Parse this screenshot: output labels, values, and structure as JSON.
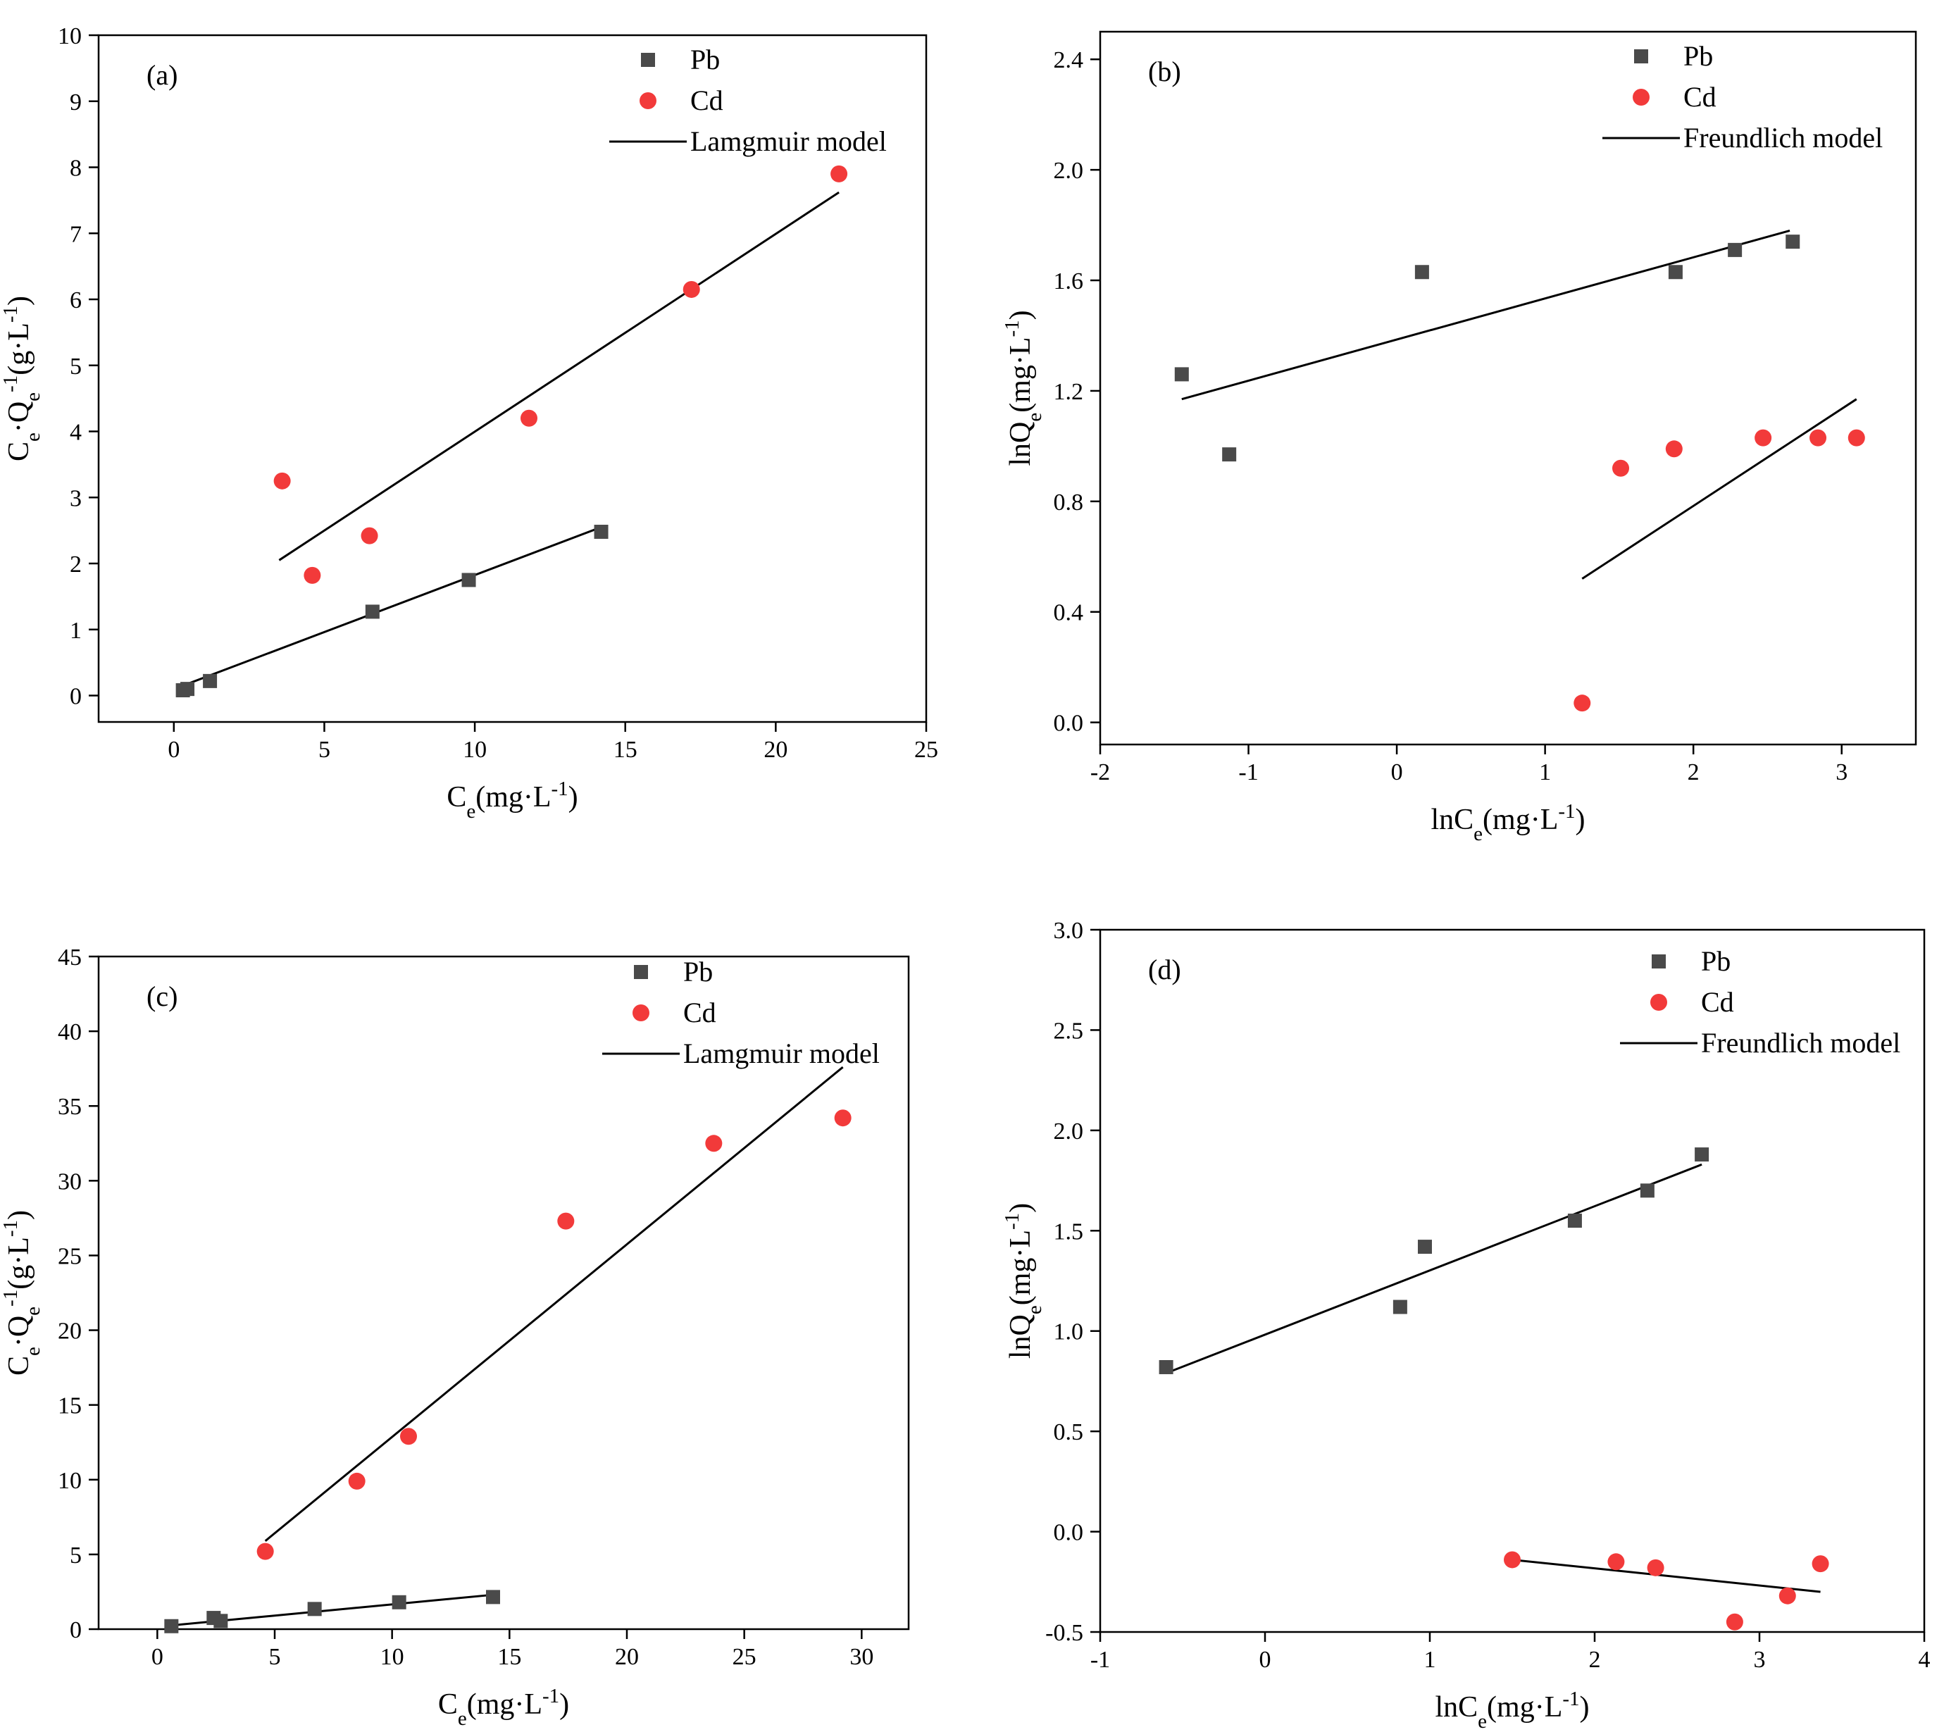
{
  "figure": {
    "colors": {
      "pb": "#4a4a4a",
      "cd": "#f23a3a",
      "line": "#000000",
      "frame": "#000000"
    }
  },
  "chart_data": [
    {
      "panel": "(a)",
      "type": "scatter",
      "xlim": [
        -2.5,
        25
      ],
      "ylim": [
        -0.4,
        10
      ],
      "xticks": [
        0,
        5,
        10,
        15,
        20,
        25
      ],
      "yticks": [
        0,
        1,
        2,
        3,
        4,
        5,
        6,
        7,
        8,
        9,
        10
      ],
      "xlabel": {
        "base": "C",
        "sub": "e",
        "rest": "(mg·L",
        "sup": "-1",
        "tail": ")"
      },
      "ylabel": {
        "parts": [
          [
            "C",
            ""
          ],
          [
            "e",
            "sub"
          ],
          [
            "·Q",
            ""
          ],
          [
            "e",
            "sub"
          ],
          [
            "-1",
            "sup"
          ],
          [
            "(g·L",
            ""
          ],
          [
            "-1",
            "sup"
          ],
          [
            ")",
            ""
          ]
        ]
      },
      "legend": {
        "items": [
          "Pb",
          "Cd",
          "Lamgmuir model"
        ]
      },
      "series": [
        {
          "name": "Pb",
          "marker": "square",
          "points": [
            [
              0.3,
              0.08
            ],
            [
              0.45,
              0.1
            ],
            [
              1.2,
              0.22
            ],
            [
              6.6,
              1.27
            ],
            [
              9.8,
              1.75
            ],
            [
              14.2,
              2.48
            ]
          ]
        },
        {
          "name": "Cd",
          "marker": "circle",
          "points": [
            [
              3.6,
              3.25
            ],
            [
              4.6,
              1.82
            ],
            [
              6.5,
              2.42
            ],
            [
              11.8,
              4.2
            ],
            [
              17.2,
              6.15
            ],
            [
              22.1,
              7.9
            ]
          ]
        }
      ],
      "fits": [
        {
          "series": "Pb",
          "from": [
            0.3,
            0.15
          ],
          "to": [
            14.2,
            2.55
          ]
        },
        {
          "series": "Cd",
          "from": [
            3.5,
            2.05
          ],
          "to": [
            22.1,
            7.62
          ]
        }
      ]
    },
    {
      "panel": "(b)",
      "type": "scatter",
      "xlim": [
        -2,
        3.5
      ],
      "ylim": [
        -0.08,
        2.5
      ],
      "xticks": [
        -2,
        -1,
        0,
        1,
        2,
        3
      ],
      "yticks": [
        0.0,
        0.4,
        0.8,
        1.2,
        1.6,
        2.0,
        2.4
      ],
      "ytick_decimals": 1,
      "xlabel": {
        "base": "lnC",
        "sub": "e",
        "rest": "(mg·L",
        "sup": "-1",
        "tail": ")"
      },
      "ylabel": {
        "parts": [
          [
            "lnQ",
            ""
          ],
          [
            "e",
            "sub"
          ],
          [
            "(mg·L",
            ""
          ],
          [
            "-1",
            "sup"
          ],
          [
            ")",
            ""
          ]
        ]
      },
      "legend": {
        "items": [
          "Pb",
          "Cd",
          "Freundlich model"
        ]
      },
      "series": [
        {
          "name": "Pb",
          "marker": "square",
          "points": [
            [
              -1.45,
              1.26
            ],
            [
              -1.13,
              0.97
            ],
            [
              0.17,
              1.63
            ],
            [
              1.88,
              1.63
            ],
            [
              2.28,
              1.71
            ],
            [
              2.67,
              1.74
            ]
          ]
        },
        {
          "name": "Cd",
          "marker": "circle",
          "points": [
            [
              1.25,
              0.07
            ],
            [
              1.51,
              0.92
            ],
            [
              1.87,
              0.99
            ],
            [
              2.47,
              1.03
            ],
            [
              2.84,
              1.03
            ],
            [
              3.1,
              1.03
            ]
          ]
        }
      ],
      "fits": [
        {
          "series": "Pb",
          "from": [
            -1.45,
            1.17
          ],
          "to": [
            2.65,
            1.78
          ]
        },
        {
          "series": "Cd",
          "from": [
            1.25,
            0.52
          ],
          "to": [
            3.1,
            1.17
          ]
        }
      ]
    },
    {
      "panel": "(c)",
      "type": "scatter",
      "xlim": [
        -2.5,
        32
      ],
      "ylim": [
        0,
        45
      ],
      "xticks": [
        0,
        5,
        10,
        15,
        20,
        25,
        30
      ],
      "yticks": [
        0,
        5,
        10,
        15,
        20,
        25,
        30,
        35,
        40,
        45
      ],
      "xlabel": {
        "base": "C",
        "sub": "e",
        "rest": "(mg·L",
        "sup": "-1",
        "tail": ")"
      },
      "ylabel": {
        "parts": [
          [
            "C",
            ""
          ],
          [
            "e",
            "sub"
          ],
          [
            "·Q",
            ""
          ],
          [
            "e",
            "sub"
          ],
          [
            "-1",
            "sup"
          ],
          [
            "(g·L",
            ""
          ],
          [
            "-1",
            "sup"
          ],
          [
            ")",
            ""
          ]
        ]
      },
      "legend": {
        "items": [
          "Pb",
          "Cd",
          "Lamgmuir model"
        ]
      },
      "series": [
        {
          "name": "Pb",
          "marker": "square",
          "points": [
            [
              0.6,
              0.2
            ],
            [
              2.4,
              0.75
            ],
            [
              2.7,
              0.55
            ],
            [
              6.7,
              1.35
            ],
            [
              10.3,
              1.8
            ],
            [
              14.3,
              2.15
            ]
          ]
        },
        {
          "name": "Cd",
          "marker": "circle",
          "points": [
            [
              4.6,
              5.2
            ],
            [
              8.5,
              9.9
            ],
            [
              10.7,
              12.9
            ],
            [
              17.4,
              27.3
            ],
            [
              23.7,
              32.5
            ],
            [
              29.2,
              34.2
            ]
          ]
        }
      ],
      "fits": [
        {
          "series": "Pb",
          "from": [
            0.6,
            0.25
          ],
          "to": [
            14.3,
            2.3
          ]
        },
        {
          "series": "Cd",
          "from": [
            4.6,
            5.9
          ],
          "to": [
            29.2,
            37.6
          ]
        }
      ]
    },
    {
      "panel": "(d)",
      "type": "scatter",
      "xlim": [
        -1,
        4
      ],
      "ylim": [
        -0.5,
        3.0
      ],
      "xticks": [
        -1,
        0,
        1,
        2,
        3,
        4
      ],
      "yticks": [
        -0.5,
        0.0,
        0.5,
        1.0,
        1.5,
        2.0,
        2.5,
        3.0
      ],
      "ytick_decimals": 1,
      "xlabel": {
        "base": "lnC",
        "sub": "e",
        "rest": "(mg·L",
        "sup": "-1",
        "tail": ")"
      },
      "ylabel": {
        "parts": [
          [
            "lnQ",
            ""
          ],
          [
            "e",
            "sub"
          ],
          [
            "(mg·L",
            ""
          ],
          [
            "-1",
            "sup"
          ],
          [
            ")",
            ""
          ]
        ]
      },
      "legend": {
        "items": [
          "Pb",
          "Cd",
          "Freundlich model"
        ]
      },
      "series": [
        {
          "name": "Pb",
          "marker": "square",
          "points": [
            [
              -0.6,
              0.82
            ],
            [
              0.82,
              1.12
            ],
            [
              0.97,
              1.42
            ],
            [
              1.88,
              1.55
            ],
            [
              2.32,
              1.7
            ],
            [
              2.65,
              1.88
            ]
          ]
        },
        {
          "name": "Cd",
          "marker": "circle",
          "points": [
            [
              1.5,
              -0.14
            ],
            [
              2.13,
              -0.15
            ],
            [
              2.37,
              -0.18
            ],
            [
              2.85,
              -0.45
            ],
            [
              3.17,
              -0.32
            ],
            [
              3.37,
              -0.16
            ]
          ]
        }
      ],
      "fits": [
        {
          "series": "Pb",
          "from": [
            -0.6,
            0.79
          ],
          "to": [
            2.65,
            1.83
          ]
        },
        {
          "series": "Cd",
          "from": [
            1.5,
            -0.14
          ],
          "to": [
            3.37,
            -0.3
          ]
        }
      ]
    }
  ]
}
